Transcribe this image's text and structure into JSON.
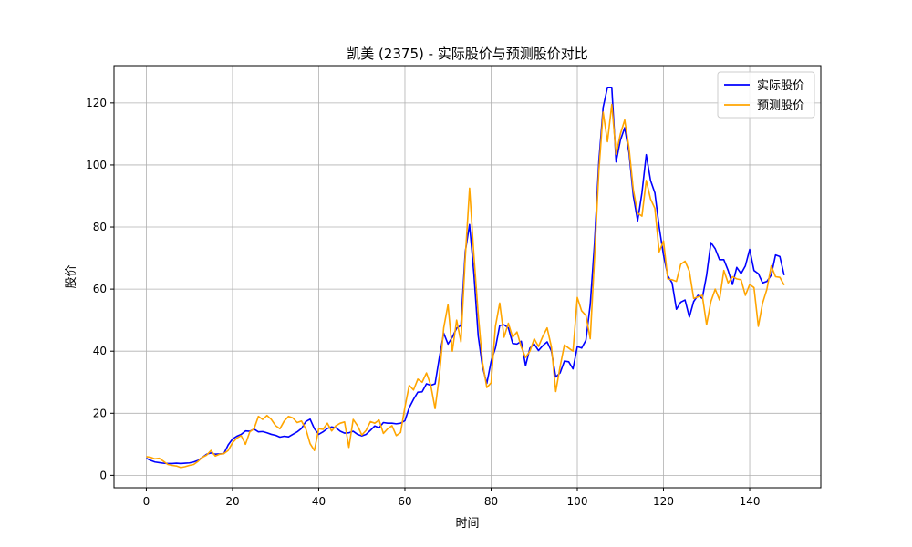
{
  "chart_data": {
    "type": "line",
    "title": "凯美 (2375) - 实际股价与预测股价对比",
    "xlabel": "时间",
    "ylabel": "股价",
    "xlim": [
      -7.5,
      156.5
    ],
    "ylim": [
      -4,
      132
    ],
    "x_ticks": [
      0,
      20,
      40,
      60,
      80,
      100,
      120,
      140
    ],
    "y_ticks": [
      0,
      20,
      40,
      60,
      80,
      100,
      120
    ],
    "grid": true,
    "legend_position": "upper right",
    "series": [
      {
        "name": "实际股价",
        "color": "#0000ff",
        "values": [
          5.5,
          4.8,
          4.3,
          4.1,
          3.9,
          3.8,
          3.8,
          3.9,
          3.8,
          3.9,
          4.0,
          4.3,
          4.8,
          5.8,
          6.8,
          7.2,
          6.8,
          6.9,
          7.0,
          9.8,
          11.7,
          12.6,
          13.2,
          14.3,
          14.2,
          14.9,
          14.0,
          14.1,
          13.7,
          13.2,
          12.9,
          12.3,
          12.6,
          12.4,
          13.2,
          14.0,
          15.1,
          17.3,
          18.1,
          15.0,
          13.2,
          14.0,
          15.1,
          15.6,
          15.3,
          14.2,
          13.6,
          13.7,
          14.2,
          13.2,
          12.7,
          13.2,
          14.5,
          15.9,
          15.3,
          17.0,
          16.8,
          16.8,
          16.6,
          16.8,
          17.6,
          21.8,
          24.5,
          26.8,
          26.9,
          29.5,
          29.0,
          29.5,
          38.0,
          45.8,
          42.3,
          44.5,
          47.4,
          48.3,
          72.0,
          80.8,
          65.0,
          45.0,
          35.0,
          29.6,
          36.7,
          41.0,
          48.3,
          48.5,
          47.5,
          42.5,
          42.3,
          43.2,
          35.3,
          41.0,
          42.3,
          40.2,
          41.8,
          43.0,
          40.0,
          31.7,
          33.0,
          36.8,
          36.6,
          34.3,
          41.5,
          41.0,
          43.5,
          55.0,
          75.0,
          101.0,
          118.6,
          125.0,
          125.0,
          101.0,
          108.0,
          112.0,
          104.0,
          90.0,
          82.0,
          91.0,
          103.3,
          95.0,
          91.0,
          80.0,
          71.0,
          64.3,
          62.0,
          53.5,
          55.8,
          56.5,
          51.0,
          56.0,
          58.0,
          57.0,
          64.5,
          75.0,
          73.0,
          69.5,
          69.5,
          66.0,
          61.5,
          67.0,
          65.0,
          67.5,
          72.8,
          66.0,
          65.0,
          62.0,
          62.5,
          64.5,
          71.0,
          70.5,
          64.5
        ]
      },
      {
        "name": "预测股价",
        "color": "#ffa500",
        "values": [
          6.0,
          5.8,
          5.3,
          5.5,
          4.5,
          3.5,
          3.2,
          3.0,
          2.5,
          2.8,
          3.2,
          3.5,
          4.5,
          5.8,
          6.5,
          8.0,
          6.2,
          6.8,
          7.0,
          8.0,
          10.5,
          12.0,
          12.8,
          10.0,
          14.0,
          15.0,
          19.0,
          18.0,
          19.3,
          18.0,
          16.0,
          15.0,
          17.5,
          19.0,
          18.5,
          17.0,
          17.5,
          15.0,
          10.2,
          8.0,
          15.0,
          14.8,
          16.8,
          14.3,
          16.0,
          16.8,
          17.2,
          9.0,
          18.0,
          16.0,
          13.0,
          14.5,
          17.3,
          16.8,
          17.8,
          13.5,
          15.0,
          16.0,
          12.8,
          13.8,
          22.0,
          29.0,
          27.5,
          31.0,
          30.0,
          33.0,
          29.0,
          21.5,
          32.0,
          47.5,
          55.0,
          40.0,
          50.0,
          43.0,
          70.0,
          92.5,
          71.0,
          52.0,
          36.5,
          28.3,
          29.8,
          48.0,
          55.5,
          44.5,
          49.0,
          44.5,
          46.2,
          41.3,
          38.0,
          40.0,
          44.0,
          41.5,
          44.8,
          47.5,
          41.3,
          27.0,
          35.0,
          42.0,
          41.0,
          40.0,
          57.3,
          53.0,
          51.5,
          44.0,
          70.0,
          98.0,
          117.0,
          107.5,
          119.5,
          103.5,
          110.0,
          114.5,
          105.5,
          92.0,
          84.5,
          83.5,
          95.0,
          89.0,
          86.0,
          72.0,
          75.5,
          63.3,
          63.0,
          62.5,
          68.0,
          69.0,
          65.8,
          57.0,
          57.5,
          58.0,
          48.5,
          56.0,
          60.0,
          56.5,
          66.0,
          62.0,
          64.0,
          63.3,
          63.0,
          58.0,
          61.5,
          60.5,
          48.0,
          55.5,
          60.0,
          67.5,
          64.0,
          63.8,
          61.3
        ]
      }
    ]
  }
}
